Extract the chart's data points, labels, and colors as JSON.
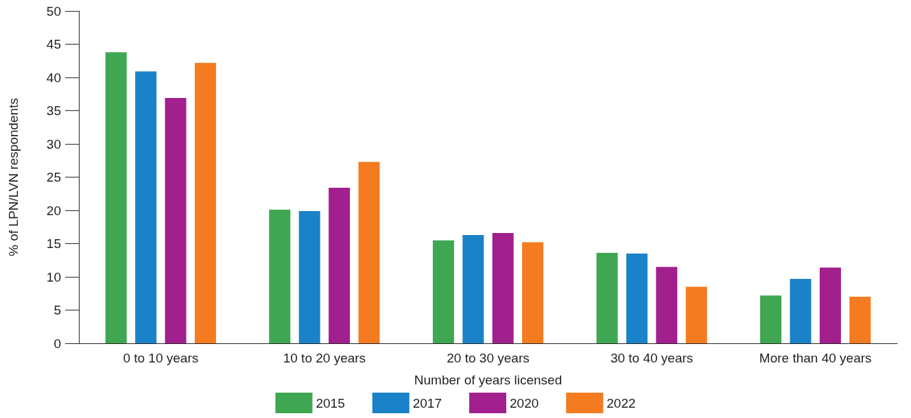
{
  "chart_data": {
    "type": "bar",
    "xlabel": "Number of years licensed",
    "ylabel": "% of LPN/LVN respondents",
    "categories": [
      "0 to 10 years",
      "10 to 20 years",
      "20 to 30 years",
      "30 to 40 years",
      "More than 40 years"
    ],
    "series": [
      {
        "name": "2015",
        "color": "#3fa652",
        "values": [
          43.8,
          20.1,
          15.5,
          13.6,
          7.2
        ]
      },
      {
        "name": "2017",
        "color": "#1a82c8",
        "values": [
          40.9,
          19.9,
          16.3,
          13.5,
          9.7
        ]
      },
      {
        "name": "2020",
        "color": "#a21f8e",
        "values": [
          36.9,
          23.4,
          16.6,
          11.5,
          11.4
        ]
      },
      {
        "name": "2022",
        "color": "#f47b20",
        "values": [
          42.2,
          27.3,
          15.2,
          8.5,
          7.0
        ]
      }
    ],
    "ylim": [
      0,
      50
    ],
    "yticks": [
      0,
      5,
      10,
      15,
      20,
      25,
      30,
      35,
      40,
      45,
      50
    ],
    "grid": false,
    "legend": "bottom"
  }
}
